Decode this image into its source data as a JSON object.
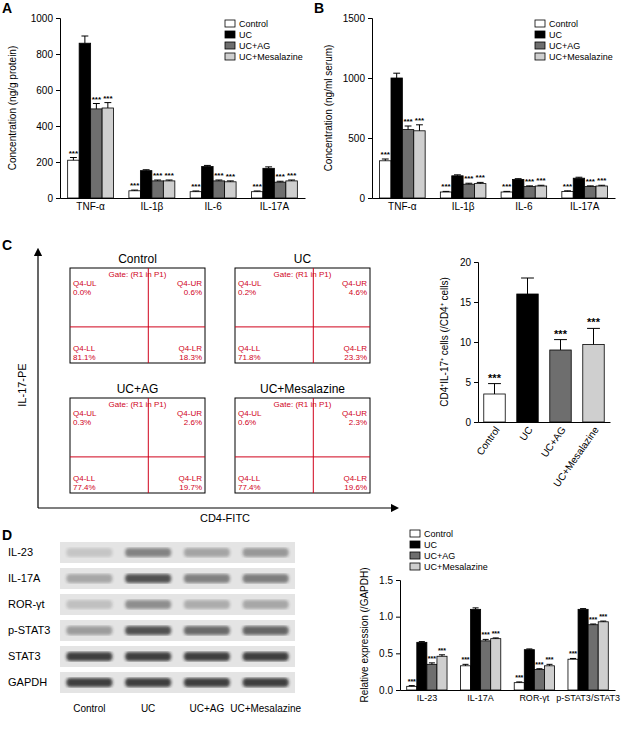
{
  "panel_labels": [
    "A",
    "B",
    "C",
    "D"
  ],
  "chart_data": [
    {
      "type": "bar",
      "y_label": "Concentration (ng/g protein)",
      "categories": [
        "TNF-α",
        "IL-1β",
        "IL-6",
        "IL-17A"
      ],
      "ylim": [
        0,
        1000
      ],
      "yticks": [
        0,
        200,
        400,
        600,
        800,
        1000
      ],
      "legend": "upper right",
      "series": [
        {
          "name": "Control",
          "color": "#ffffff",
          "values": [
            210,
            40,
            35,
            35
          ],
          "errors": [
            15,
            4,
            4,
            4
          ],
          "significance": [
            "***",
            "***",
            "***",
            "***"
          ]
        },
        {
          "name": "UC",
          "color": "#000000",
          "values": [
            860,
            152,
            175,
            165
          ],
          "errors": [
            40,
            5,
            6,
            8
          ]
        },
        {
          "name": "UC+AG",
          "color": "#6e6e6e",
          "values": [
            495,
            95,
            95,
            88
          ],
          "errors": [
            30,
            5,
            5,
            5
          ],
          "significance": [
            "***",
            "***",
            "***",
            "***"
          ]
        },
        {
          "name": "UC+Mesalazine",
          "color": "#cfcfcf",
          "values": [
            500,
            95,
            90,
            95
          ],
          "errors": [
            30,
            5,
            5,
            5
          ],
          "significance": [
            "***",
            "***",
            "***",
            "***"
          ]
        }
      ]
    },
    {
      "type": "bar",
      "y_label": "Concentration (ng/ml serum)",
      "categories": [
        "TNF-α",
        "IL-1β",
        "IL-6",
        "IL-17A"
      ],
      "ylim": [
        0,
        1500
      ],
      "yticks": [
        0,
        500,
        1000,
        1500
      ],
      "legend": "upper right",
      "series": [
        {
          "name": "Control",
          "color": "#ffffff",
          "values": [
            310,
            50,
            50,
            55
          ],
          "errors": [
            15,
            5,
            5,
            5
          ],
          "significance": [
            "***",
            "***",
            "***",
            "***"
          ]
        },
        {
          "name": "UC",
          "color": "#000000",
          "values": [
            1000,
            185,
            155,
            165
          ],
          "errors": [
            40,
            8,
            6,
            8
          ]
        },
        {
          "name": "UC+AG",
          "color": "#6e6e6e",
          "values": [
            570,
            115,
            95,
            95
          ],
          "errors": [
            30,
            8,
            6,
            6
          ],
          "significance": [
            "***",
            "***",
            "***",
            "***"
          ]
        },
        {
          "name": "UC+Mesalazine",
          "color": "#cfcfcf",
          "values": [
            560,
            120,
            100,
            100
          ],
          "errors": [
            50,
            10,
            6,
            6
          ],
          "significance": [
            "***",
            "***",
            "***",
            "***"
          ]
        }
      ]
    },
    {
      "type": "bar",
      "y_label": "CD4⁺IL-17⁺ cells (/CD4⁺ cells)",
      "categories": [
        "Control",
        "UC",
        "UC+AG",
        "UC+Mesalazine"
      ],
      "values": [
        3.5,
        16,
        9,
        9.7
      ],
      "errors": [
        1.3,
        2,
        1.3,
        2
      ],
      "colors": [
        "#ffffff",
        "#000000",
        "#6e6e6e",
        "#cfcfcf"
      ],
      "significance": [
        "***",
        null,
        "***",
        "***"
      ],
      "ylim": [
        0,
        20
      ],
      "yticks": [
        0,
        5,
        10,
        15,
        20
      ]
    },
    {
      "type": "bar",
      "y_label": "Relative expression (/GAPDH)",
      "categories": [
        "IL-23",
        "IL-17A",
        "ROR-γt",
        "p-STAT3/STAT3"
      ],
      "ylim": [
        0,
        1.5
      ],
      "yticks": [
        {
          "value": 0,
          "label": "0.0"
        },
        0.5,
        {
          "value": 1,
          "label": "1.0"
        },
        1.5
      ],
      "legend": "upper left",
      "series": [
        {
          "name": "Control",
          "color": "#ffffff",
          "values": [
            0.05,
            0.33,
            0.1,
            0.42
          ],
          "errors": [
            0.01,
            0.02,
            0.01,
            0.01
          ],
          "significance": [
            "***",
            "***",
            "***",
            "***"
          ]
        },
        {
          "name": "UC",
          "color": "#000000",
          "values": [
            0.65,
            1.1,
            0.55,
            1.1
          ],
          "errors": [
            0.01,
            0.02,
            0.01,
            0.01
          ]
        },
        {
          "name": "UC+AG",
          "color": "#6e6e6e",
          "values": [
            0.35,
            0.67,
            0.28,
            0.89
          ],
          "errors": [
            0.02,
            0.02,
            0.01,
            0.01
          ],
          "significance": [
            "***",
            "***",
            "***",
            "***"
          ]
        },
        {
          "name": "UC+Mesalazine",
          "color": "#cfcfcf",
          "values": [
            0.46,
            0.7,
            0.33,
            0.93
          ],
          "errors": [
            0.02,
            0.01,
            0.02,
            0.01
          ],
          "significance": [
            "***",
            "***",
            "***",
            "***"
          ]
        }
      ]
    }
  ],
  "flow_cytometry": {
    "x_label": "CD4-FITC",
    "y_label": "IL-17-PE",
    "plots": [
      {
        "title": "Control",
        "gate": "Gate: (R1 in P1)",
        "quadrants": [
          {
            "name": "Q4-UL",
            "label": "0.0%"
          },
          {
            "name": "Q4-UR",
            "label": "0.6%"
          },
          {
            "name": "Q4-LL",
            "label": "81.1%"
          },
          {
            "name": "Q4-LR",
            "label": "18.3%"
          }
        ]
      },
      {
        "title": "UC",
        "gate": "Gate: (R1 in P1)",
        "quadrants": [
          {
            "name": "Q4-UL",
            "label": "0.2%"
          },
          {
            "name": "Q4-UR",
            "label": "4.6%"
          },
          {
            "name": "Q4-LL",
            "label": "71.8%"
          },
          {
            "name": "Q4-LR",
            "label": "23.3%"
          }
        ]
      },
      {
        "title": "UC+AG",
        "gate": "Gate: (R1 in P1)",
        "quadrants": [
          {
            "name": "Q4-UL",
            "label": "0.3%"
          },
          {
            "name": "Q4-UR",
            "label": "2.6%"
          },
          {
            "name": "Q4-LL",
            "label": "77.4%"
          },
          {
            "name": "Q4-LR",
            "label": "19.7%"
          }
        ]
      },
      {
        "title": "UC+Mesalazine",
        "gate": "Gate: (R1 in P1)",
        "quadrants": [
          {
            "name": "Q4-UL",
            "label": "0.6%"
          },
          {
            "name": "Q4-UR",
            "label": "2.3%"
          },
          {
            "name": "Q4-LL",
            "label": "77.4%"
          },
          {
            "name": "Q4-LR",
            "label": "19.6%"
          }
        ]
      }
    ]
  },
  "western_blot": {
    "rows": [
      "IL-23",
      "IL-17A",
      "ROR-γt",
      "p-STAT3",
      "STAT3",
      "GAPDH"
    ],
    "lanes": [
      "Control",
      "UC",
      "UC+AG",
      "UC+Mesalazine"
    ]
  }
}
